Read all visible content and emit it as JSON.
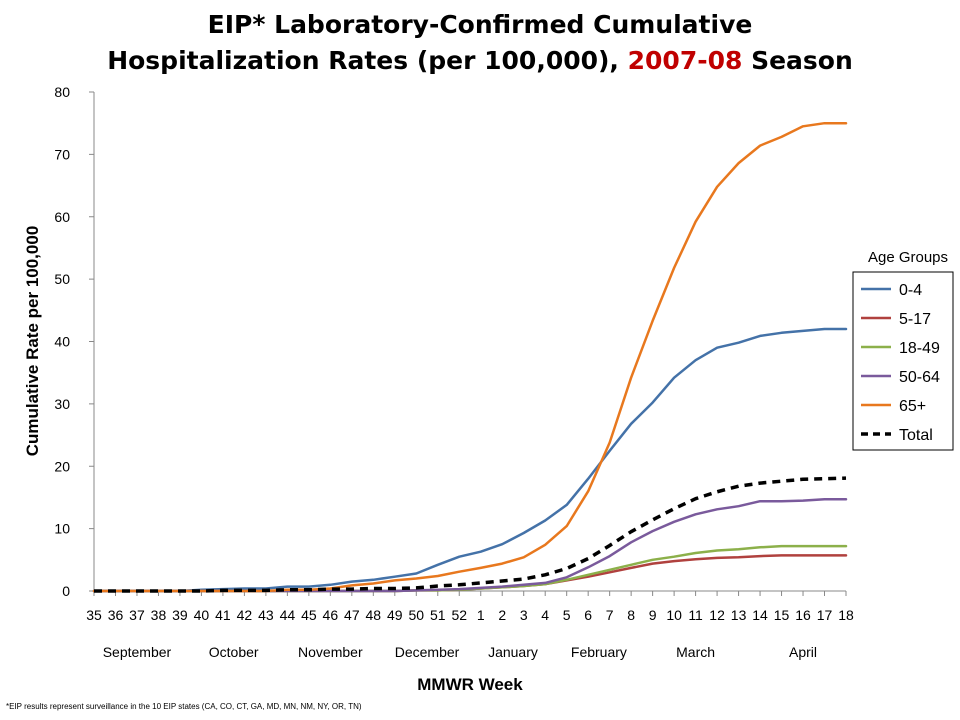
{
  "title": {
    "line1": "EIP* Laboratory-Confirmed Cumulative",
    "line2_prefix": "Hospitalization Rates (per 100,000), ",
    "line2_season": "2007-08",
    "line2_suffix": " Season"
  },
  "footnote": "*EIP results represent surveillance in the 10 EIP states (CA, CO, CT, GA, MD, MN, NM, NY, OR, TN)",
  "colors": {
    "0-4": "#4472a8",
    "5-17": "#b0413e",
    "18-49": "#8cb04a",
    "50-64": "#7a5a9c",
    "65+": "#e8781e",
    "Total": "#000000",
    "title_accent": "#c00000"
  },
  "chart_data": {
    "type": "line",
    "title": "EIP* Laboratory-Confirmed Cumulative Hospitalization Rates (per 100,000), 2007-08 Season",
    "xlabel": "MMWR Week",
    "ylabel": "Cumulative Rate per 100,000",
    "ylim": [
      0,
      80
    ],
    "yticks": [
      0,
      10,
      20,
      30,
      40,
      50,
      60,
      70,
      80
    ],
    "grid": false,
    "legend_title": "Age Groups",
    "legend_position": "right",
    "x": [
      "35",
      "36",
      "37",
      "38",
      "39",
      "40",
      "41",
      "42",
      "43",
      "44",
      "45",
      "46",
      "47",
      "48",
      "49",
      "50",
      "51",
      "52",
      "1",
      "2",
      "3",
      "4",
      "5",
      "6",
      "7",
      "8",
      "9",
      "10",
      "11",
      "12",
      "13",
      "14",
      "15",
      "16",
      "17",
      "18"
    ],
    "months": [
      {
        "label": "September",
        "from": "35",
        "to": "39"
      },
      {
        "label": "October",
        "from": "40",
        "to": "43"
      },
      {
        "label": "November",
        "from": "44",
        "to": "48"
      },
      {
        "label": "December",
        "from": "49",
        "to": "52"
      },
      {
        "label": "January",
        "from": "1",
        "to": "4"
      },
      {
        "label": "February",
        "from": "5",
        "to": "8"
      },
      {
        "label": "March",
        "from": "9",
        "to": "13"
      },
      {
        "label": "April",
        "from": "14",
        "to": "18"
      }
    ],
    "series": [
      {
        "name": "0-4",
        "dashed": false,
        "values": [
          0,
          0,
          0,
          0,
          0,
          0.2,
          0.3,
          0.4,
          0.4,
          0.7,
          0.7,
          1.0,
          1.5,
          1.8,
          2.3,
          2.8,
          4.2,
          5.5,
          6.3,
          7.5,
          9.3,
          11.3,
          13.8,
          18.0,
          22.5,
          26.8,
          30.2,
          34.2,
          37.0,
          39.0,
          39.8,
          40.9,
          41.4,
          41.7,
          42.0,
          42.0
        ]
      },
      {
        "name": "5-17",
        "dashed": false,
        "values": [
          0,
          0,
          0,
          0,
          0,
          0,
          0,
          0,
          0,
          0,
          0,
          0,
          0,
          0,
          0,
          0.1,
          0.1,
          0.2,
          0.4,
          0.6,
          0.8,
          1.1,
          1.7,
          2.3,
          3.0,
          3.7,
          4.4,
          4.8,
          5.1,
          5.3,
          5.4,
          5.6,
          5.7,
          5.7,
          5.7,
          5.7
        ]
      },
      {
        "name": "18-49",
        "dashed": false,
        "values": [
          0,
          0,
          0,
          0,
          0,
          0,
          0,
          0,
          0,
          0,
          0,
          0,
          0,
          0,
          0,
          0.1,
          0.1,
          0.2,
          0.4,
          0.6,
          0.8,
          1.1,
          1.8,
          2.6,
          3.4,
          4.2,
          5.0,
          5.5,
          6.1,
          6.5,
          6.7,
          7.0,
          7.2,
          7.2,
          7.2,
          7.2
        ]
      },
      {
        "name": "50-64",
        "dashed": false,
        "values": [
          0,
          0,
          0,
          0,
          0,
          0,
          0,
          0,
          0,
          0,
          0,
          0,
          0,
          0,
          0,
          0.1,
          0.2,
          0.3,
          0.5,
          0.7,
          1.0,
          1.3,
          2.2,
          3.8,
          5.6,
          7.8,
          9.6,
          11.1,
          12.3,
          13.1,
          13.6,
          14.4,
          14.4,
          14.5,
          14.7,
          14.7
        ]
      },
      {
        "name": "65+",
        "dashed": false,
        "values": [
          0,
          0,
          0,
          0,
          0,
          0,
          0,
          0,
          0,
          0.2,
          0.2,
          0.4,
          0.9,
          1.2,
          1.7,
          2.0,
          2.4,
          3.1,
          3.7,
          4.4,
          5.4,
          7.4,
          10.4,
          16.0,
          23.8,
          34.2,
          43.3,
          51.8,
          59.2,
          64.8,
          68.6,
          71.4,
          72.8,
          74.5,
          75.0,
          75.0
        ]
      },
      {
        "name": "Total",
        "dashed": true,
        "values": [
          0,
          0,
          0,
          0,
          0,
          0,
          0.1,
          0.1,
          0.1,
          0.2,
          0.2,
          0.3,
          0.3,
          0.4,
          0.4,
          0.5,
          0.8,
          1.0,
          1.3,
          1.6,
          1.9,
          2.6,
          3.6,
          5.2,
          7.3,
          9.5,
          11.4,
          13.2,
          14.8,
          15.9,
          16.8,
          17.3,
          17.6,
          17.9,
          18.0,
          18.1
        ]
      }
    ]
  }
}
